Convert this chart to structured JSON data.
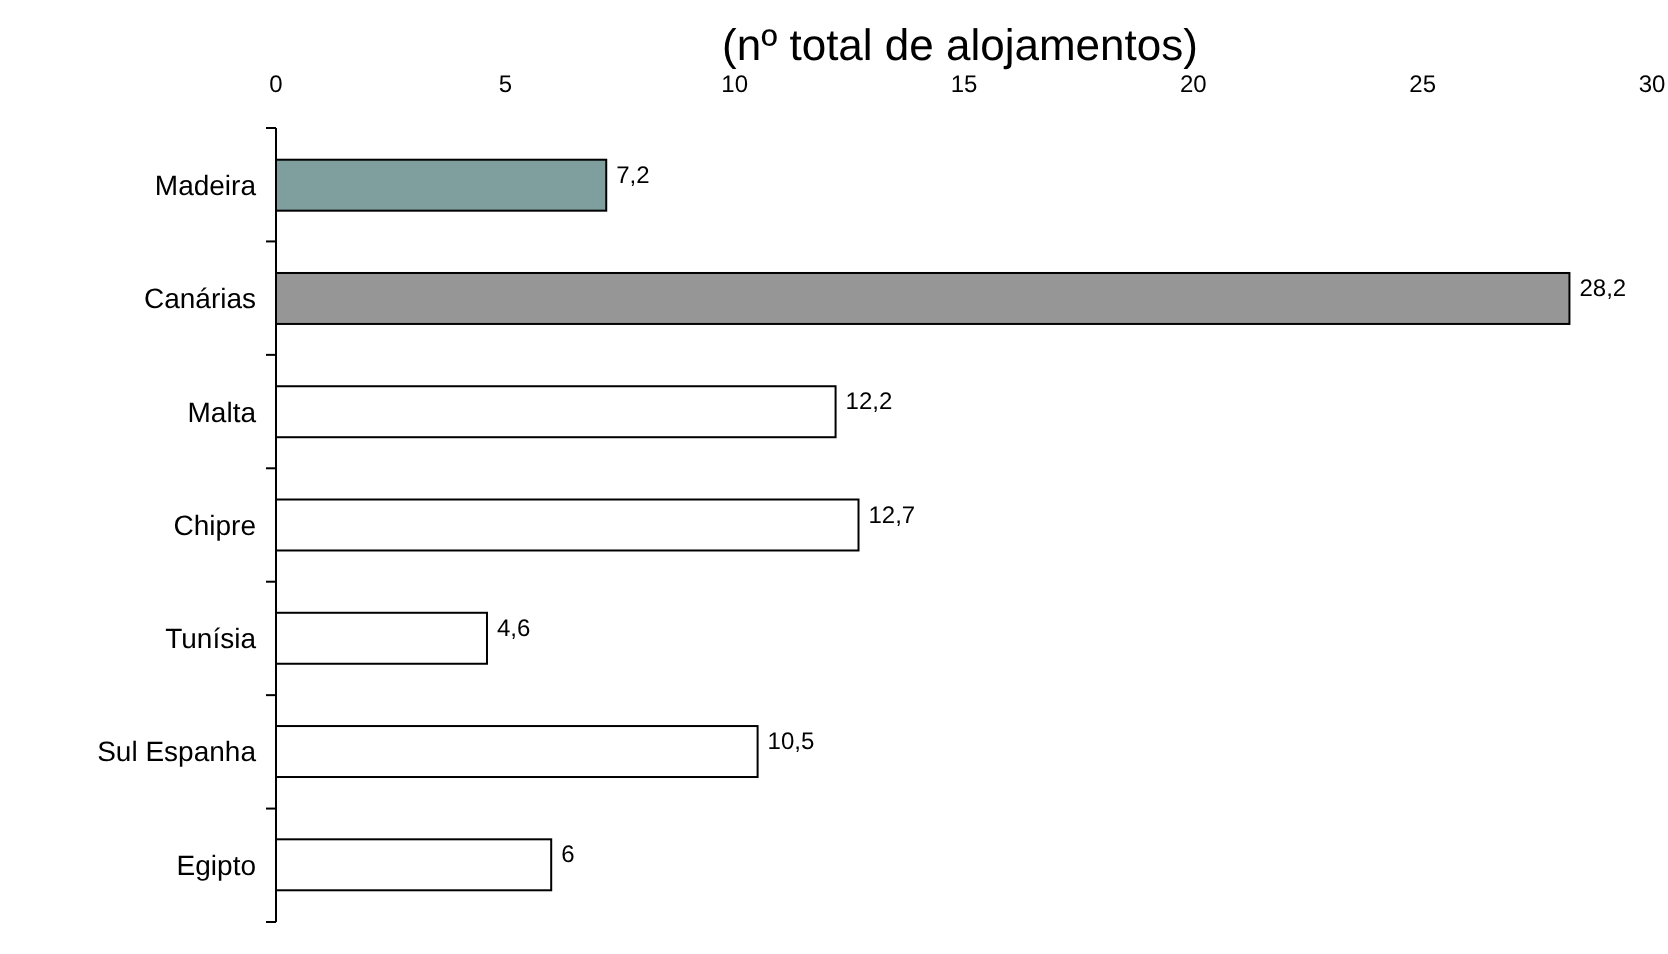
{
  "chart_data": {
    "type": "bar",
    "orientation": "horizontal",
    "subtitle": "(nº total de alojamentos)",
    "categories": [
      "Madeira",
      "Canárias",
      "Malta",
      "Chipre",
      "Tunísia",
      "Sul Espanha",
      "Egipto"
    ],
    "values": [
      7.2,
      28.2,
      12.2,
      12.7,
      4.6,
      10.5,
      6
    ],
    "colors": [
      "#7f9f9f",
      "#969696",
      "#ffffff",
      "#ffffff",
      "#ffffff",
      "#ffffff",
      "#ffffff"
    ],
    "value_labels": [
      "7,2",
      "28,2",
      "12,2",
      "12,7",
      "4,6",
      "10,5",
      "6"
    ],
    "xlim": [
      0,
      30
    ],
    "xticks": [
      0,
      5,
      10,
      15,
      20,
      25,
      30
    ]
  }
}
